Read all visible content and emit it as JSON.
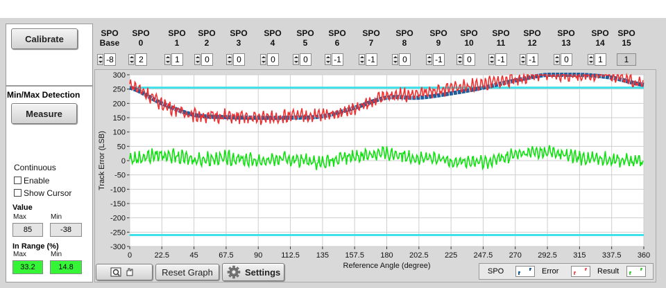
{
  "left_panel": {
    "calibrate_label": "Calibrate",
    "minmax_title": "Min/Max Detection",
    "measure_label": "Measure",
    "continuous_label": "Continuous",
    "enable_label": "Enable",
    "show_cursor_label": "Show Cursor",
    "value_title": "Value",
    "value_max_label": "Max",
    "value_min_label": "Min",
    "value_max": "85",
    "value_min": "-38",
    "in_range_title": "In Range (%)",
    "in_range_max_label": "Max",
    "in_range_min_label": "Min",
    "in_range_max": "33.2",
    "in_range_min": "14.8",
    "in_range_color": "#36f536"
  },
  "spo": [
    {
      "line1": "SPO",
      "line2": "Base",
      "value": "-8"
    },
    {
      "line1": "SPO",
      "line2": "0",
      "value": "2"
    },
    {
      "line1": "SPO",
      "line2": "1",
      "value": "1"
    },
    {
      "line1": "SPO",
      "line2": "2",
      "value": "0"
    },
    {
      "line1": "SPO",
      "line2": "3",
      "value": "0"
    },
    {
      "line1": "SPO",
      "line2": "4",
      "value": "0"
    },
    {
      "line1": "SPO",
      "line2": "5",
      "value": "0"
    },
    {
      "line1": "SPO",
      "line2": "6",
      "value": "-1"
    },
    {
      "line1": "SPO",
      "line2": "7",
      "value": "-1"
    },
    {
      "line1": "SPO",
      "line2": "8",
      "value": "0"
    },
    {
      "line1": "SPO",
      "line2": "9",
      "value": "-1"
    },
    {
      "line1": "SPO",
      "line2": "10",
      "value": "0"
    },
    {
      "line1": "SPO",
      "line2": "11",
      "value": "-1"
    },
    {
      "line1": "SPO",
      "line2": "12",
      "value": "-1"
    },
    {
      "line1": "SPO",
      "line2": "13",
      "value": "0"
    },
    {
      "line1": "SPO",
      "line2": "14",
      "value": "1"
    },
    {
      "line1": "SPO",
      "line2": "15",
      "value": "1"
    }
  ],
  "graph_toolbar": {
    "reset_label": "Reset Graph",
    "settings_label": "Settings"
  },
  "legend": {
    "spo_label": "SPO",
    "error_label": "Error",
    "result_label": "Result"
  },
  "chart_data": {
    "type": "line",
    "xlabel": "Reference Angle (degree)",
    "ylabel": "Track Error (LSB)",
    "xlim": [
      0,
      360
    ],
    "ylim": [
      -300,
      300
    ],
    "x_ticks": [
      "0",
      "22.5",
      "45",
      "67.5",
      "90",
      "112.5",
      "135",
      "157.5",
      "180",
      "202.5",
      "225",
      "247.5",
      "270",
      "292.5",
      "315",
      "337.5",
      "360"
    ],
    "y_ticks": [
      "300",
      "250",
      "200",
      "150",
      "100",
      "50",
      "0",
      "-50",
      "-100",
      "-150",
      "-200",
      "-250",
      "-300"
    ],
    "limit_lines": [
      255,
      -260
    ],
    "series": [
      {
        "name": "SPO",
        "color": "#1f5f9c",
        "x": [
          0,
          22.5,
          45,
          67.5,
          90,
          112.5,
          135,
          157.5,
          180,
          202.5,
          225,
          247.5,
          270,
          292.5,
          315,
          337.5,
          360
        ],
        "y": [
          255,
          200,
          160,
          152,
          150,
          150,
          155,
          185,
          220,
          220,
          235,
          255,
          280,
          300,
          300,
          290,
          265
        ]
      },
      {
        "name": "Error",
        "color": "#f03030",
        "x": [
          0,
          22.5,
          45,
          67.5,
          90,
          112.5,
          135,
          157.5,
          180,
          202.5,
          225,
          247.5,
          270,
          292.5,
          315,
          337.5,
          360
        ],
        "y": [
          265,
          200,
          160,
          155,
          150,
          155,
          160,
          180,
          225,
          235,
          250,
          268,
          285,
          300,
          300,
          300,
          270
        ]
      },
      {
        "name": "Result",
        "color": "#10e010",
        "x": [
          0,
          22.5,
          45,
          67.5,
          90,
          112.5,
          135,
          157.5,
          180,
          202.5,
          225,
          247.5,
          270,
          292.5,
          315,
          337.5,
          360
        ],
        "y": [
          5,
          20,
          5,
          10,
          0,
          5,
          -5,
          15,
          25,
          10,
          0,
          -5,
          20,
          30,
          10,
          5,
          -5
        ]
      }
    ],
    "limit_color": "#3ee0ea",
    "grid": true
  }
}
